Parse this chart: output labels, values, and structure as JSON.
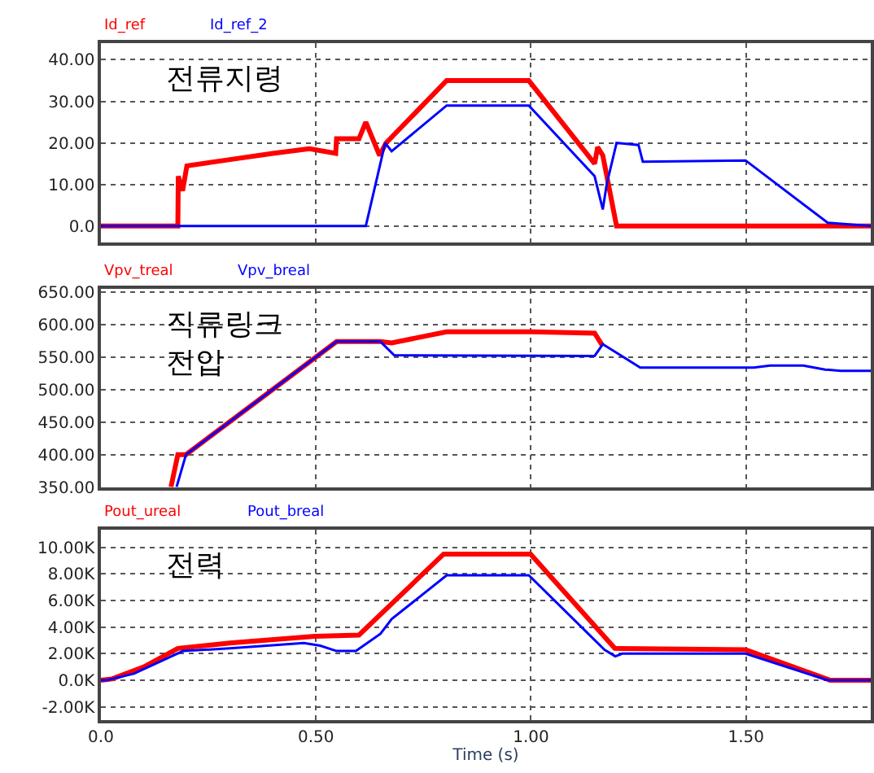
{
  "chart_data": [
    {
      "type": "line",
      "annotations": [
        "전류지령"
      ],
      "xlim": [
        0,
        1.79
      ],
      "ylim": [
        -4,
        44
      ],
      "xticks": [
        {
          "value": 0,
          "label": null
        },
        {
          "value": 0.5,
          "label": null
        },
        {
          "value": 1,
          "label": null
        },
        {
          "value": 1.5,
          "label": null
        }
      ],
      "yticks": [
        {
          "value": 0,
          "label": "0.0"
        },
        {
          "value": 10,
          "label": "10.00"
        },
        {
          "value": 20,
          "label": "20.00"
        },
        {
          "value": 30,
          "label": "30.00"
        },
        {
          "value": 40,
          "label": "40.00"
        }
      ],
      "tick_labels": "y",
      "grid": true,
      "legend": "top left",
      "line_style": "solid",
      "series": [
        {
          "name": "Id_ref",
          "color": "#ff0000",
          "x": [
            0,
            0.179,
            0.18,
            0.19,
            0.2,
            0.3,
            0.4,
            0.485,
            0.546,
            0.548,
            0.6,
            0.616,
            0.648,
            0.663,
            0.804,
            0.995,
            1.148,
            1.155,
            1.167,
            1.199,
            1.79
          ],
          "values": [
            0,
            0,
            12,
            8.5,
            14.5,
            16,
            17.5,
            18.6,
            17.5,
            21,
            21,
            25,
            17,
            20,
            35,
            35,
            15,
            19,
            17,
            0,
            0
          ]
        },
        {
          "name": "Id_ref_2",
          "color": "#0000ff",
          "x": [
            0,
            0.616,
            0.661,
            0.676,
            0.804,
            0.995,
            1.148,
            1.167,
            1.176,
            1.199,
            1.25,
            1.26,
            1.499,
            1.69,
            1.79
          ],
          "values": [
            0,
            0,
            20,
            18,
            29,
            29,
            12,
            4,
            10,
            20,
            19.5,
            15.5,
            15.8,
            0.8,
            0
          ]
        }
      ]
    },
    {
      "type": "line",
      "annotations": [
        "직류링크\n전압"
      ],
      "xlim": [
        0,
        1.79
      ],
      "ylim": [
        350,
        655
      ],
      "xticks": [
        {
          "value": 0,
          "label": null
        },
        {
          "value": 0.5,
          "label": null
        },
        {
          "value": 1,
          "label": null
        },
        {
          "value": 1.5,
          "label": null
        }
      ],
      "yticks": [
        {
          "value": 350,
          "label": "350.00"
        },
        {
          "value": 400,
          "label": "400.00"
        },
        {
          "value": 450,
          "label": "450.00"
        },
        {
          "value": 500,
          "label": "500.00"
        },
        {
          "value": 550,
          "label": "550.00"
        },
        {
          "value": 600,
          "label": "600.00"
        },
        {
          "value": 650,
          "label": "650.00"
        }
      ],
      "tick_labels": "y",
      "grid": true,
      "legend": "top left",
      "line_style": "solid",
      "series": [
        {
          "name": "Vpv_treal",
          "color": "#ff0000",
          "x": [
            0.163,
            0.179,
            0.198,
            0.548,
            0.65,
            0.676,
            0.804,
            1.0,
            1.148,
            1.167
          ],
          "values": [
            350,
            400,
            400,
            574,
            574,
            572,
            589,
            589,
            587,
            567
          ]
        },
        {
          "name": "Vpv_breal",
          "color": "#0000ff",
          "x": [
            0.176,
            0.198,
            0.548,
            0.65,
            0.682,
            1.148,
            1.167,
            1.254,
            1.518,
            1.556,
            1.633,
            1.684,
            1.72,
            1.79
          ],
          "values": [
            350,
            400,
            574,
            574,
            553,
            552,
            570,
            534,
            534,
            537,
            537,
            531,
            529,
            529
          ]
        }
      ]
    },
    {
      "type": "line",
      "annotations": [
        "전력"
      ],
      "xlabel": "Time (s)",
      "xlim": [
        0,
        1.79
      ],
      "ylim": [
        -3000,
        11300
      ],
      "xticks": [
        {
          "value": 0,
          "label": "0.0"
        },
        {
          "value": 0.5,
          "label": "0.50"
        },
        {
          "value": 1,
          "label": "1.00"
        },
        {
          "value": 1.5,
          "label": "1.50"
        }
      ],
      "yticks": [
        {
          "value": -2000,
          "label": "-2.00K"
        },
        {
          "value": 0,
          "label": "0.0K"
        },
        {
          "value": 2000,
          "label": "2.00K"
        },
        {
          "value": 4000,
          "label": "4.00K"
        },
        {
          "value": 6000,
          "label": "6.00K"
        },
        {
          "value": 8000,
          "label": "8.00K"
        },
        {
          "value": 10000,
          "label": "10.00K"
        }
      ],
      "grid": true,
      "legend": "top left",
      "line_style": "solid",
      "series": [
        {
          "name": "Pout_ureal",
          "color": "#ff0000",
          "x": [
            0,
            0.026,
            0.1,
            0.179,
            0.3,
            0.497,
            0.6,
            0.797,
            0.999,
            1.195,
            1.499,
            1.696,
            1.79
          ],
          "values": [
            0,
            100,
            1000,
            2400,
            2800,
            3300,
            3400,
            9500,
            9500,
            2400,
            2300,
            0,
            0
          ]
        },
        {
          "name": "Pout_breal",
          "color": "#0000ff",
          "x": [
            0,
            0.013,
            0.077,
            0.191,
            0.3,
            0.472,
            0.51,
            0.548,
            0.593,
            0.65,
            0.676,
            0.804,
            0.995,
            1.171,
            1.196,
            1.212,
            1.499,
            1.69,
            1.79
          ],
          "values": [
            0,
            0,
            500,
            2200,
            2400,
            2800,
            2600,
            2200,
            2200,
            3500,
            4600,
            7900,
            7900,
            2300,
            1800,
            2000,
            2000,
            0,
            0
          ]
        }
      ]
    }
  ]
}
